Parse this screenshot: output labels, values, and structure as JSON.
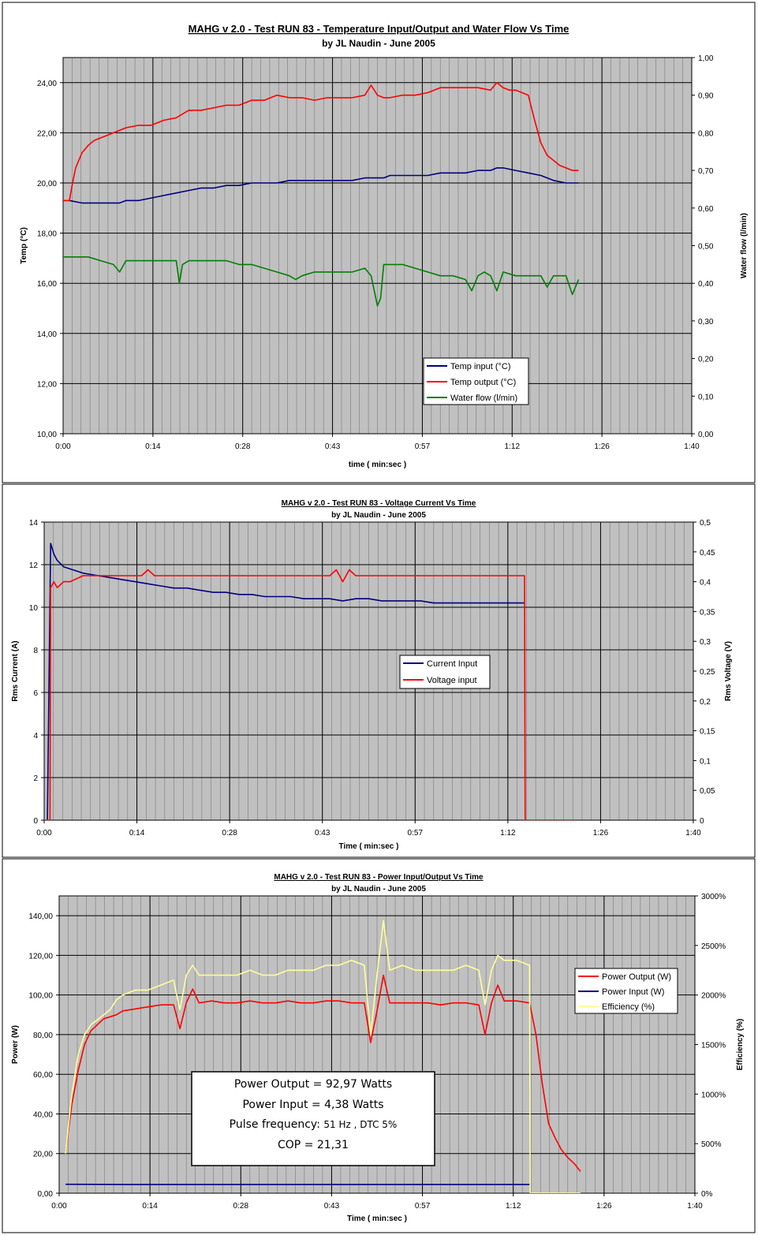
{
  "chart_data": [
    {
      "type": "line",
      "title": "MAHG v 2.0 - Test RUN 83 - Temperature Input/Output and Water Flow Vs Time",
      "subtitle": "by JL Naudin - June 2005",
      "xlabel": "time  ( min:sec )",
      "ylabel": "Temp (°C)",
      "y2label": "Water flow   (l/min)",
      "xticks": [
        "0:00",
        "0:14",
        "0:28",
        "0:43",
        "0:57",
        "1:12",
        "1:26",
        "1:40"
      ],
      "xlim_sec": [
        0,
        100
      ],
      "yticks": [
        "10,00",
        "12,00",
        "14,00",
        "16,00",
        "18,00",
        "20,00",
        "22,00",
        "24,00"
      ],
      "ylim": [
        10,
        25
      ],
      "y2ticks": [
        "0,00",
        "0,10",
        "0,20",
        "0,30",
        "0,40",
        "0,50",
        "0,60",
        "0,70",
        "0,80",
        "0,90",
        "1,00"
      ],
      "y2lim": [
        0,
        1
      ],
      "grid": true,
      "legend_position": "lower-center",
      "series": [
        {
          "name": "Temp input (°C)",
          "color": "#000080",
          "axis": "left",
          "x": [
            0,
            1,
            3,
            5,
            9,
            10,
            12,
            14,
            16,
            18,
            20,
            22,
            24,
            26,
            28,
            30,
            32,
            34,
            36,
            38,
            40,
            42,
            44,
            46,
            48,
            50,
            51,
            52,
            54,
            56,
            58,
            60,
            62,
            64,
            66,
            68,
            69,
            70,
            72,
            74,
            76,
            78,
            80,
            82
          ],
          "y": [
            19.3,
            19.3,
            19.2,
            19.2,
            19.2,
            19.3,
            19.3,
            19.4,
            19.5,
            19.6,
            19.7,
            19.8,
            19.8,
            19.9,
            19.9,
            20.0,
            20.0,
            20.0,
            20.1,
            20.1,
            20.1,
            20.1,
            20.1,
            20.1,
            20.2,
            20.2,
            20.2,
            20.3,
            20.3,
            20.3,
            20.3,
            20.4,
            20.4,
            20.4,
            20.5,
            20.5,
            20.6,
            20.6,
            20.5,
            20.4,
            20.3,
            20.1,
            20.0,
            20.0
          ]
        },
        {
          "name": "Temp output (°C)",
          "color": "#ff0000",
          "axis": "left",
          "x": [
            0,
            1,
            1.5,
            2,
            3,
            4,
            5,
            6,
            7,
            8,
            10,
            12,
            14,
            16,
            18,
            20,
            22,
            24,
            26,
            28,
            30,
            32,
            34,
            36,
            38,
            40,
            42,
            44,
            46,
            48,
            49,
            50,
            51,
            52,
            54,
            56,
            58,
            60,
            62,
            64,
            66,
            68,
            69,
            70,
            71,
            72,
            74,
            75,
            76,
            77,
            78,
            79,
            80,
            81,
            82
          ],
          "y": [
            19.3,
            19.3,
            20.0,
            20.6,
            21.2,
            21.5,
            21.7,
            21.8,
            21.9,
            22.0,
            22.2,
            22.3,
            22.3,
            22.5,
            22.6,
            22.9,
            22.9,
            23.0,
            23.1,
            23.1,
            23.3,
            23.3,
            23.5,
            23.4,
            23.4,
            23.3,
            23.4,
            23.4,
            23.4,
            23.5,
            23.9,
            23.5,
            23.4,
            23.4,
            23.5,
            23.5,
            23.6,
            23.8,
            23.8,
            23.8,
            23.8,
            23.7,
            24.0,
            23.8,
            23.7,
            23.7,
            23.5,
            22.5,
            21.6,
            21.1,
            20.9,
            20.7,
            20.6,
            20.5,
            20.5
          ]
        },
        {
          "name": "Water flow (l/min)",
          "color": "#008000",
          "axis": "right",
          "x": [
            0,
            2,
            4,
            6,
            8,
            9,
            10,
            12,
            14,
            16,
            18,
            18.5,
            19,
            20,
            22,
            24,
            26,
            28,
            30,
            32,
            34,
            36,
            37,
            38,
            40,
            42,
            44,
            46,
            48,
            49,
            50,
            50.5,
            51,
            52,
            54,
            56,
            58,
            60,
            62,
            64,
            65,
            66,
            67,
            68,
            69,
            70,
            72,
            74,
            76,
            77,
            78,
            80,
            81,
            82
          ],
          "y": [
            0.47,
            0.47,
            0.47,
            0.46,
            0.45,
            0.43,
            0.46,
            0.46,
            0.46,
            0.46,
            0.46,
            0.4,
            0.45,
            0.46,
            0.46,
            0.46,
            0.46,
            0.45,
            0.45,
            0.44,
            0.43,
            0.42,
            0.41,
            0.42,
            0.43,
            0.43,
            0.43,
            0.43,
            0.44,
            0.42,
            0.34,
            0.36,
            0.45,
            0.45,
            0.45,
            0.44,
            0.43,
            0.42,
            0.42,
            0.41,
            0.38,
            0.42,
            0.43,
            0.42,
            0.38,
            0.43,
            0.42,
            0.42,
            0.42,
            0.39,
            0.42,
            0.42,
            0.37,
            0.41
          ]
        }
      ]
    },
    {
      "type": "line",
      "title": "MAHG v 2.0 - Test RUN 83 - Voltage Current Vs Time",
      "subtitle": "by JL Naudin - June 2005",
      "xlabel": "Time  ( min:sec )",
      "ylabel": "Rms Current (A)",
      "y2label": "Rms Voltage (V)",
      "xticks": [
        "0:00",
        "0:14",
        "0:28",
        "0:43",
        "0:57",
        "1:12",
        "1:26",
        "1:40"
      ],
      "xlim_sec": [
        0,
        100
      ],
      "yticks": [
        "0",
        "2",
        "4",
        "6",
        "8",
        "10",
        "12",
        "14"
      ],
      "ylim": [
        0,
        14
      ],
      "y2ticks": [
        "0",
        "0,05",
        "0,1",
        "0,15",
        "0,2",
        "0,25",
        "0,3",
        "0,35",
        "0,4",
        "0,45",
        "0,5"
      ],
      "y2lim": [
        0,
        0.5
      ],
      "grid": true,
      "legend_position": "center",
      "series": [
        {
          "name": "Current Input",
          "color": "#000080",
          "axis": "left",
          "x": [
            0.5,
            1,
            1.5,
            2,
            3,
            4,
            6,
            8,
            10,
            12,
            14,
            16,
            18,
            20,
            22,
            24,
            26,
            28,
            30,
            32,
            34,
            36,
            38,
            40,
            42,
            44,
            46,
            48,
            50,
            52,
            54,
            56,
            58,
            60,
            62,
            64,
            66,
            68,
            70,
            72,
            74
          ],
          "y": [
            0,
            13.0,
            12.5,
            12.2,
            11.9,
            11.8,
            11.6,
            11.5,
            11.4,
            11.3,
            11.2,
            11.1,
            11.0,
            10.9,
            10.9,
            10.8,
            10.7,
            10.7,
            10.6,
            10.6,
            10.5,
            10.5,
            10.5,
            10.4,
            10.4,
            10.4,
            10.3,
            10.4,
            10.4,
            10.3,
            10.3,
            10.3,
            10.3,
            10.2,
            10.2,
            10.2,
            10.2,
            10.2,
            10.2,
            10.2,
            10.2
          ]
        },
        {
          "name": "Voltage input",
          "color": "#ff0000",
          "axis": "right",
          "x": [
            0,
            0.9,
            1,
            1.5,
            2,
            3,
            4,
            6,
            8,
            10,
            12,
            14,
            15,
            16,
            17,
            18,
            20,
            24,
            28,
            32,
            36,
            40,
            42,
            44,
            45,
            46,
            47,
            48,
            50,
            54,
            58,
            62,
            66,
            70,
            74,
            74.1,
            76,
            82
          ],
          "y": [
            0,
            0,
            0.39,
            0.4,
            0.39,
            0.4,
            0.4,
            0.41,
            0.41,
            0.41,
            0.41,
            0.41,
            0.41,
            0.42,
            0.41,
            0.41,
            0.41,
            0.41,
            0.41,
            0.41,
            0.41,
            0.41,
            0.41,
            0.41,
            0.42,
            0.4,
            0.42,
            0.41,
            0.41,
            0.41,
            0.41,
            0.41,
            0.41,
            0.41,
            0.41,
            0,
            0,
            0
          ]
        }
      ]
    },
    {
      "type": "line",
      "title": "MAHG v 2.0 - Test RUN 83 - Power Input/Output Vs Time",
      "subtitle": "by JL Naudin - June 2005",
      "xlabel": "Time  ( min:sec )",
      "ylabel": "Power (W)",
      "y2label": "Efficiency (%)",
      "xticks": [
        "0:00",
        "0:14",
        "0:28",
        "0:43",
        "0:57",
        "1:12",
        "1:26",
        "1:40"
      ],
      "xlim_sec": [
        0,
        100
      ],
      "yticks": [
        "0,00",
        "20,00",
        "40,00",
        "60,00",
        "80,00",
        "100,00",
        "120,00",
        "140,00"
      ],
      "ylim": [
        0,
        150
      ],
      "y2ticks": [
        "0%",
        "500%",
        "1000%",
        "1500%",
        "2000%",
        "2500%",
        "3000%"
      ],
      "y2lim": [
        0,
        3000
      ],
      "grid": true,
      "legend_position": "right",
      "series": [
        {
          "name": "Power Output (W)",
          "color": "#ff0000",
          "axis": "left",
          "x": [
            1,
            2,
            3,
            4,
            5,
            6,
            7,
            8,
            9,
            10,
            12,
            14,
            16,
            18,
            19,
            20,
            21,
            22,
            24,
            26,
            28,
            30,
            32,
            34,
            36,
            38,
            40,
            42,
            44,
            46,
            48,
            49,
            50,
            51,
            52,
            54,
            56,
            58,
            60,
            62,
            64,
            66,
            67,
            68,
            69,
            70,
            72,
            74,
            75,
            76,
            77,
            78,
            79,
            80,
            81,
            82
          ],
          "y": [
            20,
            45,
            62,
            75,
            82,
            85,
            88,
            89,
            90,
            92,
            93,
            94,
            95,
            95,
            83,
            96,
            103,
            96,
            97,
            96,
            96,
            97,
            96,
            96,
            97,
            96,
            96,
            97,
            97,
            96,
            96,
            76,
            92,
            110,
            96,
            96,
            96,
            96,
            95,
            96,
            96,
            95,
            80,
            96,
            105,
            97,
            97,
            96,
            80,
            55,
            35,
            28,
            22,
            18,
            15,
            11
          ]
        },
        {
          "name": "Power Input (W)",
          "color": "#000080",
          "axis": "left",
          "x": [
            1,
            10,
            20,
            30,
            40,
            50,
            60,
            70,
            74
          ],
          "y": [
            4.5,
            4.4,
            4.4,
            4.4,
            4.4,
            4.4,
            4.4,
            4.4,
            4.4
          ]
        },
        {
          "name": "Efficiency (%)",
          "color": "#ffff99",
          "axis": "right",
          "x": [
            1,
            2,
            3,
            4,
            5,
            6,
            7,
            8,
            9,
            10,
            12,
            14,
            16,
            18,
            19,
            20,
            21,
            22,
            24,
            26,
            28,
            30,
            32,
            34,
            36,
            38,
            40,
            42,
            44,
            46,
            48,
            49,
            50,
            51,
            52,
            54,
            56,
            58,
            60,
            62,
            64,
            66,
            67,
            68,
            69,
            70,
            72,
            74,
            74.1,
            82
          ],
          "y": [
            400,
            1000,
            1400,
            1600,
            1700,
            1750,
            1800,
            1850,
            1950,
            2000,
            2050,
            2050,
            2100,
            2150,
            1850,
            2200,
            2300,
            2200,
            2200,
            2200,
            2200,
            2250,
            2200,
            2200,
            2250,
            2250,
            2250,
            2300,
            2300,
            2350,
            2300,
            1600,
            2200,
            2750,
            2250,
            2300,
            2250,
            2250,
            2250,
            2250,
            2300,
            2250,
            1900,
            2250,
            2400,
            2350,
            2350,
            2300,
            0,
            0
          ]
        }
      ]
    }
  ],
  "annotation": {
    "line1": "Power Output = 92,97 Watts",
    "line2": "Power Input = 4,38 Watts",
    "line3_label": "Pulse frequency:",
    "line3_value": "51 Hz  ,  DTC 5%",
    "line4": "COP =  21,31"
  }
}
